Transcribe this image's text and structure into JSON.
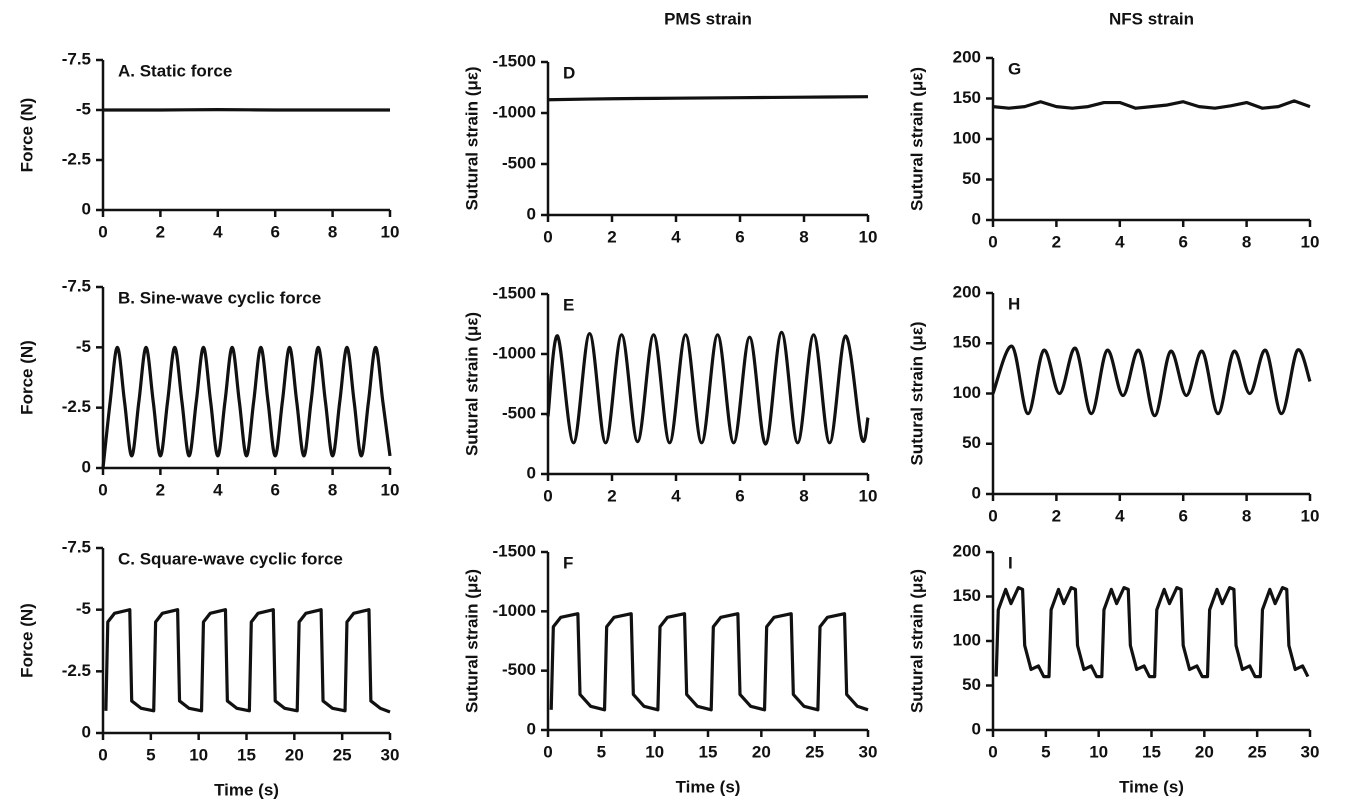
{
  "chart_data": [
    {
      "type": "line",
      "annotation": "A.  Static force",
      "ylabel": "Force (N)",
      "smooth": true,
      "color": "#111111",
      "x": [
        0,
        2,
        4,
        6,
        8,
        10
      ],
      "values": [
        -5,
        -5,
        -5.02,
        -5,
        -5,
        -5
      ],
      "xlim": [
        0,
        10
      ],
      "xticks": [
        0,
        2,
        4,
        6,
        8,
        10
      ],
      "ylim": [
        0,
        -7.5
      ],
      "yticks": [
        0,
        -2.5,
        -5,
        -7.5
      ]
    },
    {
      "type": "line",
      "annotation": "B.  Sine-wave cyclic force",
      "ylabel": "Force (N)",
      "smooth": true,
      "color": "#111111",
      "x": [
        0,
        0.25,
        0.5,
        0.75,
        1,
        1.25,
        1.5,
        1.75,
        2,
        2.25,
        2.5,
        2.75,
        3,
        3.25,
        3.5,
        3.75,
        4,
        4.25,
        4.5,
        4.75,
        5,
        5.25,
        5.5,
        5.75,
        6,
        6.25,
        6.5,
        6.75,
        7,
        7.25,
        7.5,
        7.75,
        8,
        8.25,
        8.5,
        8.75,
        9,
        9.25,
        9.5,
        9.75,
        10
      ],
      "values": [
        0,
        -2.75,
        -5,
        -2.75,
        -0.5,
        -2.75,
        -5,
        -2.75,
        -0.5,
        -2.75,
        -5,
        -2.75,
        -0.5,
        -2.75,
        -5,
        -2.75,
        -0.5,
        -2.75,
        -5,
        -2.75,
        -0.5,
        -2.75,
        -5,
        -2.75,
        -0.5,
        -2.75,
        -5,
        -2.75,
        -0.5,
        -2.75,
        -5,
        -2.75,
        -0.5,
        -2.75,
        -5,
        -2.75,
        -0.5,
        -2.75,
        -5,
        -2.75,
        -0.5
      ],
      "xlim": [
        0,
        10
      ],
      "xticks": [
        0,
        2,
        4,
        6,
        8,
        10
      ],
      "ylim": [
        0,
        -7.5
      ],
      "yticks": [
        0,
        -2.5,
        -5,
        -7.5
      ]
    },
    {
      "type": "line",
      "annotation": "C.  Square-wave cyclic force",
      "ylabel": "Force (N)",
      "xlabel": "Time (s)",
      "smooth": false,
      "color": "#111111",
      "x": [
        0.3,
        0.5,
        1.2,
        2.8,
        3.0,
        4.0,
        5.3,
        5.5,
        6.2,
        7.8,
        8.0,
        9.0,
        10.3,
        10.5,
        11.2,
        12.8,
        13.0,
        14.0,
        15.3,
        15.5,
        16.2,
        17.8,
        18.0,
        19.0,
        20.3,
        20.5,
        21.2,
        22.8,
        23.0,
        24.0,
        25.3,
        25.5,
        26.2,
        27.8,
        28.0,
        29.0,
        30
      ],
      "values": [
        -0.9,
        -4.5,
        -4.85,
        -5,
        -1.3,
        -1.0,
        -0.9,
        -4.5,
        -4.85,
        -5,
        -1.3,
        -1.0,
        -0.9,
        -4.5,
        -4.85,
        -5,
        -1.3,
        -1.0,
        -0.9,
        -4.5,
        -4.85,
        -5,
        -1.3,
        -1.0,
        -0.9,
        -4.5,
        -4.85,
        -5,
        -1.3,
        -1.0,
        -0.9,
        -4.5,
        -4.85,
        -5,
        -1.3,
        -1.0,
        -0.85
      ],
      "xlim": [
        0,
        30
      ],
      "xticks": [
        0,
        5,
        10,
        15,
        20,
        25,
        30
      ],
      "ylim": [
        0,
        -7.5
      ],
      "yticks": [
        0,
        -2.5,
        -5,
        -7.5
      ]
    },
    {
      "type": "line",
      "title": "PMS strain",
      "annotation": "D",
      "ylabel": "Sutural strain (με)",
      "smooth": true,
      "color": "#111111",
      "x": [
        0,
        2,
        4,
        6,
        8,
        10
      ],
      "values": [
        -1130,
        -1140,
        -1145,
        -1150,
        -1155,
        -1160
      ],
      "xlim": [
        0,
        10
      ],
      "xticks": [
        0,
        2,
        4,
        6,
        8,
        10
      ],
      "ylim": [
        0,
        -1500
      ],
      "yticks": [
        0,
        -500,
        -1000,
        -1500
      ]
    },
    {
      "type": "line",
      "annotation": "E",
      "ylabel": "Sutural strain (με)",
      "smooth": true,
      "color": "#111111",
      "x": [
        0,
        0.3,
        0.8,
        1.3,
        1.8,
        2.3,
        2.8,
        3.3,
        3.8,
        4.3,
        4.8,
        5.3,
        5.8,
        6.3,
        6.8,
        7.3,
        7.8,
        8.3,
        8.8,
        9.3,
        9.8,
        10
      ],
      "values": [
        -480,
        -1150,
        -260,
        -1170,
        -260,
        -1160,
        -270,
        -1160,
        -260,
        -1160,
        -260,
        -1160,
        -260,
        -1140,
        -250,
        -1180,
        -260,
        -1160,
        -260,
        -1150,
        -300,
        -470
      ],
      "xlim": [
        0,
        10
      ],
      "xticks": [
        0,
        2,
        4,
        6,
        8,
        10
      ],
      "ylim": [
        0,
        -1500
      ],
      "yticks": [
        0,
        -500,
        -1000,
        -1500
      ]
    },
    {
      "type": "line",
      "annotation": "F",
      "ylabel": "Sutural strain (με)",
      "xlabel": "Time (s)",
      "smooth": false,
      "color": "#111111",
      "x": [
        0.3,
        0.5,
        1.2,
        2.8,
        3.0,
        4.0,
        5.3,
        5.5,
        6.2,
        7.8,
        8.0,
        9.0,
        10.3,
        10.5,
        11.2,
        12.8,
        13.0,
        14.0,
        15.3,
        15.5,
        16.2,
        17.8,
        18.0,
        19.0,
        20.3,
        20.5,
        21.2,
        22.8,
        23.0,
        24.0,
        25.3,
        25.5,
        26.2,
        27.8,
        28.0,
        29.0,
        30
      ],
      "values": [
        -170,
        -870,
        -950,
        -980,
        -300,
        -200,
        -170,
        -870,
        -950,
        -980,
        -300,
        -200,
        -170,
        -870,
        -950,
        -980,
        -300,
        -200,
        -170,
        -870,
        -950,
        -980,
        -300,
        -200,
        -170,
        -870,
        -950,
        -980,
        -300,
        -200,
        -170,
        -870,
        -950,
        -980,
        -300,
        -200,
        -170
      ],
      "xlim": [
        0,
        30
      ],
      "xticks": [
        0,
        5,
        10,
        15,
        20,
        25,
        30
      ],
      "ylim": [
        0,
        -1500
      ],
      "yticks": [
        0,
        -500,
        -1000,
        -1500
      ]
    },
    {
      "type": "line",
      "title": "NFS strain",
      "annotation": "G",
      "ylabel": "Sutural strain (με)",
      "smooth": false,
      "color": "#111111",
      "x": [
        0,
        0.5,
        1,
        1.5,
        2,
        2.5,
        3,
        3.5,
        4,
        4.5,
        5,
        5.5,
        6,
        6.5,
        7,
        7.5,
        8,
        8.5,
        9,
        9.5,
        10
      ],
      "values": [
        140,
        138,
        140,
        146,
        140,
        138,
        140,
        145,
        145,
        138,
        140,
        142,
        146,
        140,
        138,
        141,
        145,
        138,
        140,
        147,
        140
      ],
      "xlim": [
        0,
        10
      ],
      "xticks": [
        0,
        2,
        4,
        6,
        8,
        10
      ],
      "ylim": [
        0,
        200
      ],
      "yticks": [
        0,
        50,
        100,
        150,
        200
      ]
    },
    {
      "type": "line",
      "annotation": "H",
      "ylabel": "Sutural strain (με)",
      "smooth": true,
      "color": "#111111",
      "x": [
        0,
        0.6,
        1.1,
        1.6,
        2.1,
        2.6,
        3.1,
        3.6,
        4.1,
        4.6,
        5.1,
        5.6,
        6.1,
        6.6,
        7.1,
        7.6,
        8.1,
        8.6,
        9.1,
        9.6,
        10
      ],
      "values": [
        100,
        147,
        80,
        143,
        100,
        145,
        80,
        143,
        98,
        143,
        78,
        142,
        98,
        142,
        80,
        142,
        100,
        143,
        80,
        143,
        112
      ],
      "xlim": [
        0,
        10
      ],
      "xticks": [
        0,
        2,
        4,
        6,
        8,
        10
      ],
      "ylim": [
        0,
        200
      ],
      "yticks": [
        0,
        50,
        100,
        150,
        200
      ]
    },
    {
      "type": "line",
      "annotation": "I",
      "ylabel": "Sutural strain (με)",
      "xlabel": "Time (s)",
      "smooth": false,
      "color": "#111111",
      "x": [
        0.3,
        0.5,
        1.2,
        1.7,
        2.4,
        2.8,
        3.0,
        3.6,
        4.3,
        4.8,
        5.3,
        5.5,
        6.2,
        6.7,
        7.4,
        7.8,
        8.0,
        8.6,
        9.3,
        9.8,
        10.3,
        10.5,
        11.2,
        11.7,
        12.4,
        12.8,
        13.0,
        13.6,
        14.3,
        14.8,
        15.3,
        15.5,
        16.2,
        16.7,
        17.4,
        17.8,
        18.0,
        18.6,
        19.3,
        19.8,
        20.3,
        20.5,
        21.2,
        21.7,
        22.4,
        22.8,
        23.0,
        23.6,
        24.3,
        24.8,
        25.3,
        25.5,
        26.2,
        26.7,
        27.4,
        27.8,
        28.0,
        28.6,
        29.3,
        29.8
      ],
      "values": [
        60,
        135,
        158,
        142,
        160,
        158,
        95,
        68,
        72,
        60,
        60,
        135,
        158,
        142,
        160,
        158,
        95,
        68,
        72,
        60,
        60,
        135,
        158,
        142,
        160,
        158,
        95,
        68,
        72,
        60,
        60,
        135,
        158,
        142,
        160,
        158,
        95,
        68,
        72,
        60,
        60,
        135,
        158,
        142,
        160,
        158,
        95,
        68,
        72,
        60,
        60,
        135,
        158,
        142,
        160,
        158,
        95,
        68,
        72,
        60
      ],
      "xlim": [
        0,
        30
      ],
      "xticks": [
        0,
        5,
        10,
        15,
        20,
        25,
        30
      ],
      "ylim": [
        0,
        200
      ],
      "yticks": [
        0,
        50,
        100,
        150,
        200
      ]
    }
  ]
}
